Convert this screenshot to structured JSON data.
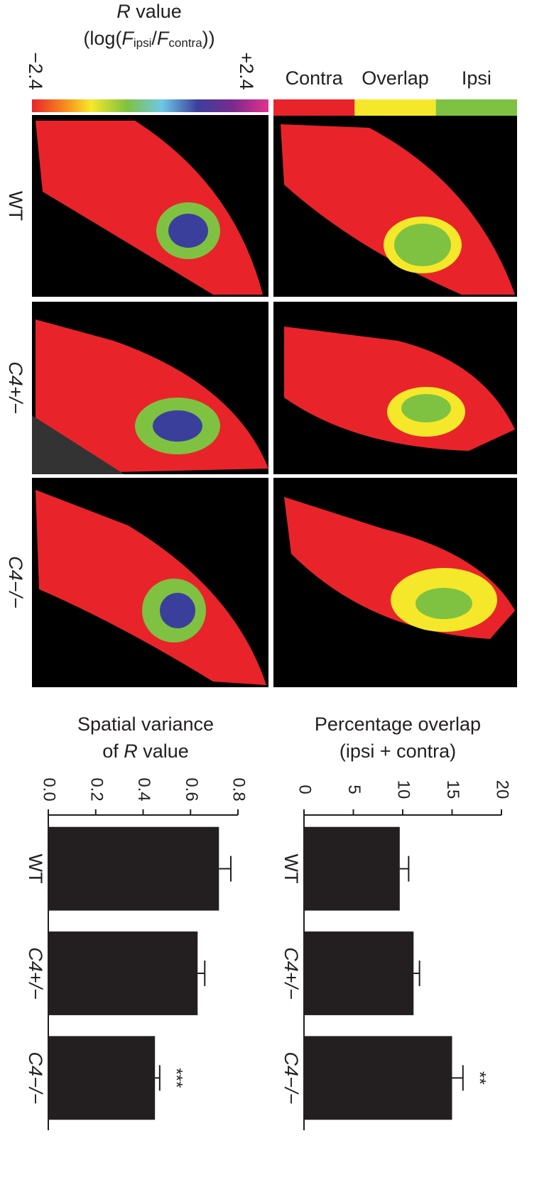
{
  "colorbar": {
    "title": [
      "R",
      " value"
    ],
    "formula": [
      "(log(",
      "F",
      "ipsi",
      "/",
      "F",
      "contra",
      "))"
    ],
    "min_label": "−2.4",
    "max_label": "+2.4"
  },
  "overlap_legend": {
    "items": [
      "Contra",
      "Overlap",
      "Ipsi"
    ],
    "colors": [
      "#e8242a",
      "#f5e82a",
      "#7fc241"
    ]
  },
  "genotypes": [
    "WT",
    "C4+/−",
    "C4−/−"
  ],
  "chart_data": [
    {
      "type": "bar",
      "title": [
        "Spatial variance",
        "of ",
        "R",
        " value"
      ],
      "categories": [
        "WT",
        "C4+/−",
        "C4−/−"
      ],
      "values": [
        0.72,
        0.63,
        0.45
      ],
      "errors": [
        0.05,
        0.03,
        0.02
      ],
      "annotations": [
        null,
        null,
        "***"
      ],
      "color": "#231f20",
      "xlim": [
        0,
        0.8
      ],
      "xticks": [
        {
          "value": 0,
          "label": "0.0"
        },
        0.2,
        0.4,
        0.6,
        0.8
      ]
    },
    {
      "type": "bar",
      "title": [
        "Percentage overlap",
        "(ipsi + contra)"
      ],
      "categories": [
        "WT",
        "C4+/−",
        "C4−/−"
      ],
      "values": [
        9.7,
        11.1,
        15.0
      ],
      "errors": [
        0.9,
        0.6,
        1.1
      ],
      "annotations": [
        null,
        null,
        "**"
      ],
      "color": "#231f20",
      "xlim": [
        0,
        20
      ],
      "xticks": [
        0,
        5,
        10,
        15,
        20
      ]
    }
  ]
}
